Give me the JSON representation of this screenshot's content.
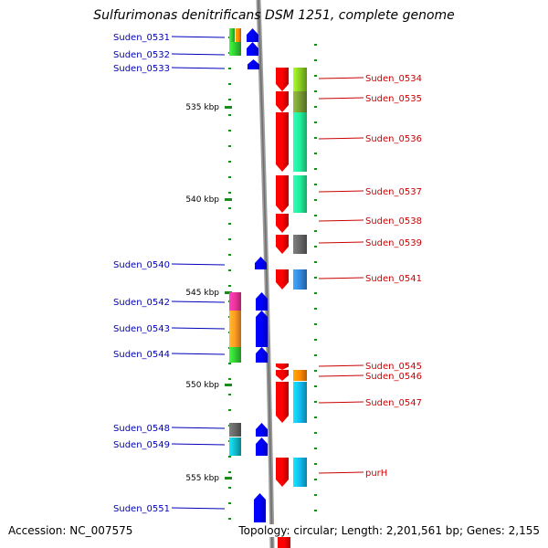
{
  "title": "Sulfurimonas denitrificans DSM 1251, complete genome",
  "accession": "Accession: NC_007575",
  "topology": "Topology: circular; Length: 2,201,561 bp; Genes: 2,155",
  "colors": {
    "left_label": "#0000bb",
    "right_label": "#cc0000",
    "backbone": "#8c8c8c",
    "tick": "#1a8a1a",
    "forward_gene": "#0000ff",
    "reverse_gene": "#ff0000"
  },
  "scale": {
    "ticks": [
      {
        "label": "535 kbp",
        "kbp": 535
      },
      {
        "label": "540 kbp",
        "kbp": 540
      },
      {
        "label": "545 kbp",
        "kbp": 545
      },
      {
        "label": "550 kbp",
        "kbp": 550
      },
      {
        "label": "555 kbp",
        "kbp": 555
      }
    ]
  },
  "left_genes": [
    {
      "label": "Suden_0531",
      "track_colors": [
        "#33cc33",
        "#ff8800"
      ]
    },
    {
      "label": "Suden_0532",
      "track_colors": [
        "#33cc33"
      ]
    },
    {
      "label": "Suden_0533",
      "track_colors": []
    },
    {
      "label": "Suden_0540",
      "track_colors": []
    },
    {
      "label": "Suden_0542",
      "track_colors": [
        "#ee3399"
      ]
    },
    {
      "label": "Suden_0543",
      "track_colors": [
        "#ff9922"
      ]
    },
    {
      "label": "Suden_0544",
      "track_colors": [
        "#33cc33"
      ]
    },
    {
      "label": "Suden_0548",
      "track_colors": [
        "#666666"
      ]
    },
    {
      "label": "Suden_0549",
      "track_colors": [
        "#11bbcc"
      ]
    },
    {
      "label": "Suden_0551",
      "track_colors": []
    }
  ],
  "right_genes": [
    {
      "label": "Suden_0534",
      "track_colors": [
        "#88cc22"
      ]
    },
    {
      "label": "Suden_0535",
      "track_colors": [
        "#779933"
      ]
    },
    {
      "label": "Suden_0536",
      "track_colors": [
        "#22ee99"
      ]
    },
    {
      "label": "Suden_0537",
      "track_colors": [
        "#22ee99"
      ]
    },
    {
      "label": "Suden_0538",
      "track_colors": []
    },
    {
      "label": "Suden_0539",
      "track_colors": [
        "#666666"
      ]
    },
    {
      "label": "Suden_0541",
      "track_colors": [
        "#3388dd"
      ]
    },
    {
      "label": "Suden_0545",
      "track_colors": []
    },
    {
      "label": "Suden_0546",
      "track_colors": [
        "#ff8800"
      ]
    },
    {
      "label": "Suden_0547",
      "track_colors": [
        "#11bbee"
      ]
    },
    {
      "label": "purH",
      "track_colors": [
        "#11bbee"
      ]
    }
  ]
}
